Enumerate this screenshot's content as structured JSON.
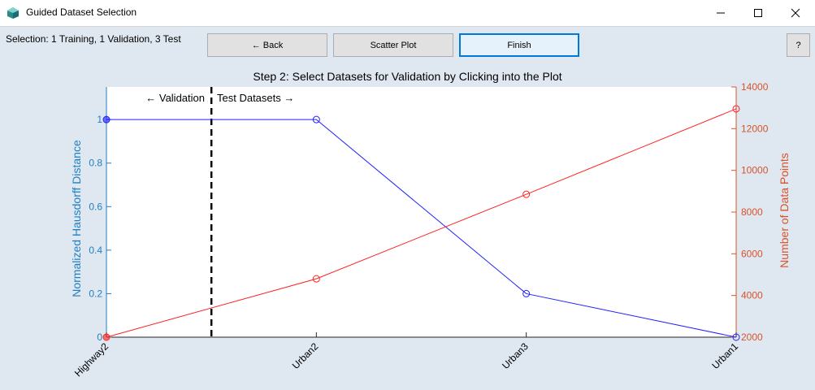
{
  "window": {
    "title": "Guided Dataset Selection",
    "controls": {
      "minimize": "—",
      "maximize": "☐",
      "close": "✕"
    }
  },
  "toolbar": {
    "selection_text": "Selection: 1 Training, 1 Validation, 3 Test",
    "back_label": "← Back",
    "scatter_label": "Scatter Plot",
    "finish_label": "Finish",
    "help_label": "?"
  },
  "plot": {
    "title": "Step 2: Select Datasets for Validation by Clicking into the Plot",
    "region_left_label": "← Validation",
    "region_right_label": "Test Datasets →"
  },
  "colors": {
    "left_axis": "#1f7fc3",
    "right_axis": "#d9532a",
    "hausdorff_line": "#2222ff",
    "points_line": "#ff2222"
  },
  "chart_data": {
    "type": "line",
    "categories": [
      "Highway2",
      "Urban2",
      "Urban3",
      "Urban1"
    ],
    "series": [
      {
        "name": "Normalized Hausdorff Distance",
        "axis": "left",
        "values": [
          1,
          1,
          0.2,
          0
        ]
      },
      {
        "name": "Number of Data Points",
        "axis": "right",
        "values": [
          2000,
          4800,
          8850,
          12950
        ]
      }
    ],
    "ylabel_left": "Normalized Hausdorff Distance",
    "ylabel_right": "Number of Data Points",
    "ylim_left": [
      0,
      1.15
    ],
    "yticks_left": [
      "0",
      "0.2",
      "0.4",
      "0.6",
      "0.8",
      "1"
    ],
    "ylim_right": [
      2000,
      14000
    ],
    "yticks_right": [
      "2000",
      "4000",
      "6000",
      "8000",
      "10000",
      "12000",
      "14000"
    ],
    "selection_divider_after_category": 0
  }
}
